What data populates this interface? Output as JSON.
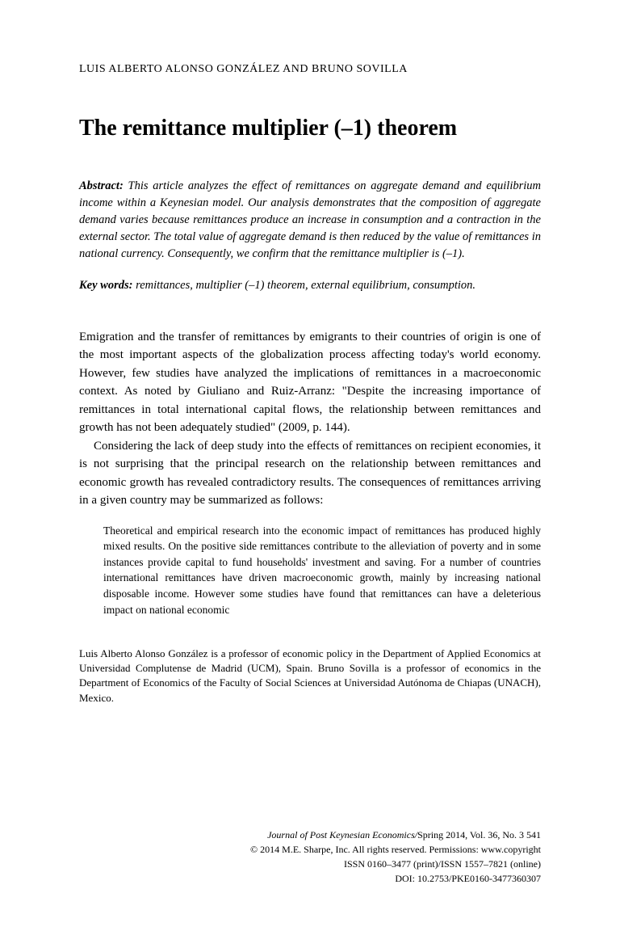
{
  "authors": "LUIS ALBERTO ALONSO GONZÁLEZ AND BRUNO SOVILLA",
  "title": "The remittance multiplier (–1) theorem",
  "abstract": {
    "label": "Abstract:",
    "text": " This article analyzes the effect of remittances on aggregate demand and equilibrium income within a Keynesian model. Our analysis demonstrates that the composition of aggregate demand varies because remittances produce an increase in consumption and a contraction in the external sector. The total value of aggregate demand is then reduced by the value of remittances in national currency. Consequently, we confirm that the remittance multiplier is (–1)."
  },
  "keywords": {
    "label": "Key words:",
    "text": " remittances, multiplier (–1) theorem, external equilibrium, consumption."
  },
  "para1": "Emigration and the transfer of remittances by emigrants to their countries of origin is one of the most important aspects of the globalization process affecting today's world economy. However, few studies have analyzed the implications of remittances in a macroeconomic context. As noted by Giuliano and Ruiz-Arranz: \"Despite the increasing importance of remittances in total international capital flows, the relationship between remittances and growth has not been adequately studied\" (2009, p. 144).",
  "para2": "Considering the lack of deep study into the effects of remittances on recipient economies, it is not surprising that the principal research on the relationship between remittances and economic growth has revealed contradictory results. The consequences of remittances arriving in a given country may be summarized as follows:",
  "blockquote": "Theoretical and empirical research into the economic impact of remittances has produced highly mixed results. On the positive side remittances contribute to the alleviation of poverty and in some instances provide capital to fund households' investment and saving. For a number of countries international remittances have driven macroeconomic growth, mainly by increasing national disposable income. However some studies have found that remittances can have a deleterious impact on national economic",
  "bio": "Luis Alberto Alonso González is a professor of economic policy in the Department of Applied Economics at Universidad Complutense de Madrid (UCM), Spain. Bruno Sovilla is a professor of economics in the Department of Economics of the Faculty of Social Sciences at Universidad Autónoma de Chiapas (UNACH), Mexico.",
  "footer": {
    "journal": "Journal of Post Keynesian Economics/",
    "issue": "Spring 2014, Vol. 36, No. 3 541",
    "copyright": "© 2014 M.E. Sharpe, Inc. All rights reserved. Permissions: www.copyright",
    "issn": "ISSN 0160–3477 (print)/ISSN 1557–7821 (online)",
    "doi": "DOI: 10.2753/PKE0160-3477360307"
  }
}
